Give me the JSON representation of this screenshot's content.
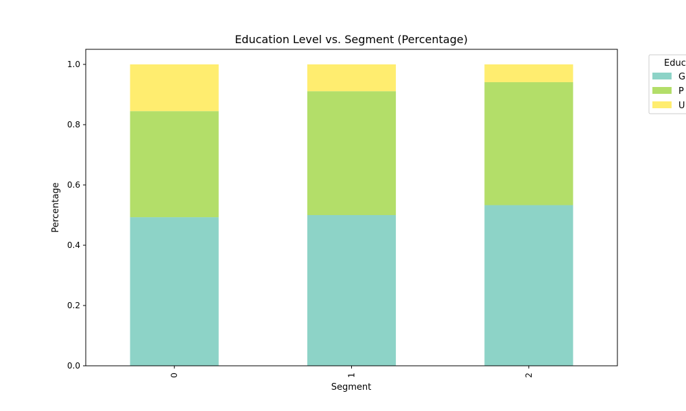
{
  "chart_data": {
    "type": "bar",
    "stacked": true,
    "title": "Education Level vs. Segment (Percentage)",
    "xlabel": "Segment",
    "ylabel": "Percentage",
    "categories": [
      "0",
      "1",
      "2"
    ],
    "ylim": [
      0,
      1.05
    ],
    "yticks": [
      "0.0",
      "0.2",
      "0.4",
      "0.6",
      "0.8",
      "1.0"
    ],
    "grid": false,
    "legend": {
      "title": "Educ",
      "placement": "outside-top-right",
      "labels": [
        "G",
        "P",
        "U"
      ]
    },
    "series": [
      {
        "name": "G",
        "color": "#8dd3c7",
        "values": [
          0.493,
          0.5,
          0.533
        ]
      },
      {
        "name": "P",
        "color": "#b3de69",
        "values": [
          0.352,
          0.411,
          0.408
        ]
      },
      {
        "name": "U",
        "color": "#ffed6f",
        "values": [
          0.155,
          0.089,
          0.059
        ]
      }
    ]
  }
}
